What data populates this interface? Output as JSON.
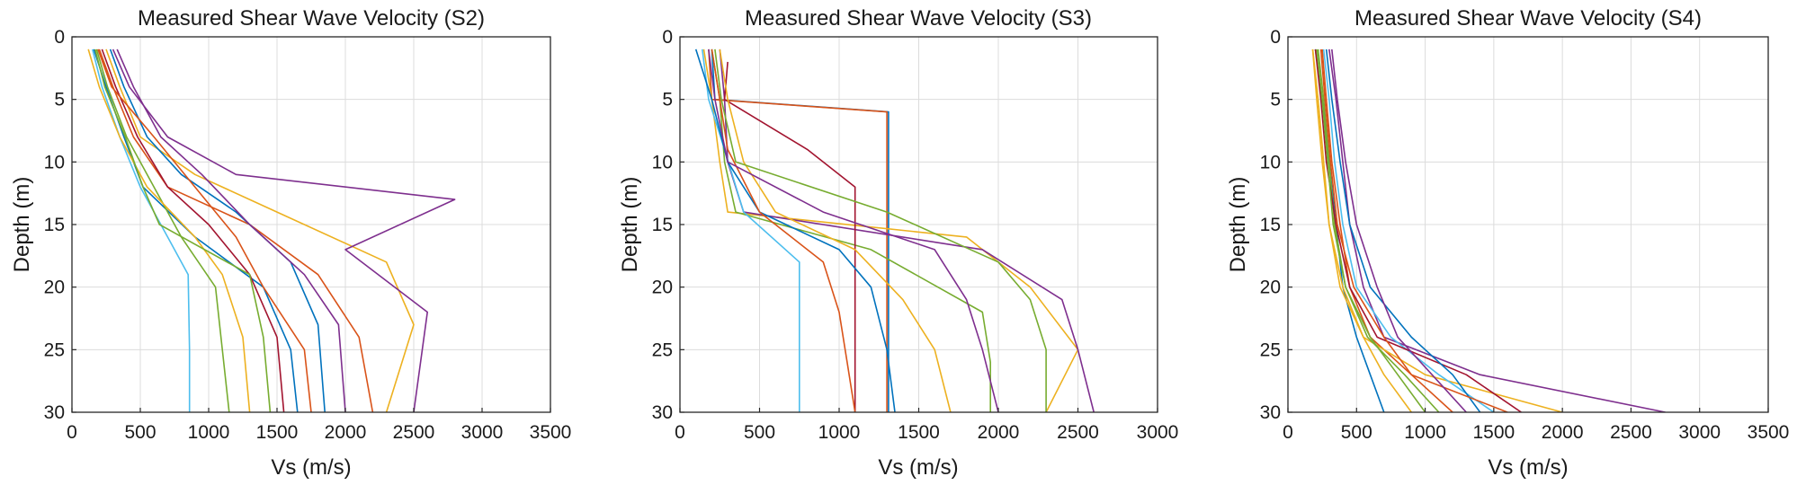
{
  "colors": [
    "#0072BD",
    "#D95319",
    "#EDB120",
    "#7E2F8E",
    "#77AC30",
    "#4DBEEE",
    "#A2142F"
  ],
  "chart_data": [
    {
      "type": "line",
      "title": "Measured Shear Wave Velocity (S2)",
      "xlabel": "Vs (m/s)",
      "ylabel": "Depth (m)",
      "xlim": [
        0,
        3500
      ],
      "ylim": [
        0,
        30
      ],
      "y_reversed": true,
      "grid": true,
      "xticks": [
        "0",
        "500",
        "1000",
        "1500",
        "2000",
        "2500",
        "3000",
        "3500"
      ],
      "yticks": [
        "0",
        "5",
        "10",
        "15",
        "20",
        "25",
        "30"
      ],
      "series": [
        {
          "x": [
            160,
            250,
            380,
            520,
            900,
            1400,
            1600,
            1650
          ],
          "y": [
            1,
            4,
            8,
            12,
            16,
            20,
            25,
            30
          ]
        },
        {
          "x": [
            200,
            300,
            450,
            700,
            1300,
            1800,
            2100,
            2200
          ],
          "y": [
            1,
            4,
            8,
            12,
            15,
            19,
            24,
            30
          ]
        },
        {
          "x": [
            250,
            350,
            500,
            900,
            1500,
            2300,
            2500,
            2300
          ],
          "y": [
            1,
            4,
            8,
            11,
            14,
            18,
            23,
            30
          ]
        },
        {
          "x": [
            300,
            420,
            700,
            1200,
            2800,
            2000,
            2600,
            2500
          ],
          "y": [
            1,
            4,
            8,
            11,
            13,
            17,
            22,
            30
          ]
        },
        {
          "x": [
            180,
            260,
            400,
            600,
            800,
            1050,
            1100,
            1150
          ],
          "y": [
            1,
            4,
            8,
            12,
            16,
            20,
            25,
            30
          ]
        },
        {
          "x": [
            150,
            220,
            350,
            500,
            700,
            850,
            860,
            860
          ],
          "y": [
            1,
            4,
            8,
            12,
            16,
            19,
            25,
            30
          ]
        },
        {
          "x": [
            220,
            320,
            480,
            700,
            1000,
            1300,
            1500,
            1550
          ],
          "y": [
            1,
            4,
            8,
            12,
            15,
            19,
            24,
            30
          ]
        },
        {
          "x": [
            280,
            380,
            550,
            800,
            1200,
            1600,
            1800,
            1850
          ],
          "y": [
            1,
            4,
            8,
            11,
            14,
            18,
            23,
            30
          ]
        },
        {
          "x": [
            190,
            290,
            600,
            900,
            1200,
            1400,
            1700,
            1750
          ],
          "y": [
            1,
            4,
            8,
            12,
            16,
            20,
            25,
            30
          ]
        },
        {
          "x": [
            120,
            200,
            350,
            550,
            900,
            1100,
            1250,
            1300
          ],
          "y": [
            1,
            4,
            8,
            12,
            16,
            19,
            24,
            30
          ]
        },
        {
          "x": [
            330,
            450,
            650,
            950,
            1300,
            1700,
            1950,
            2000
          ],
          "y": [
            1,
            4,
            8,
            11,
            15,
            19,
            23,
            30
          ]
        },
        {
          "x": [
            170,
            240,
            390,
            520,
            640,
            1300,
            1400,
            1450
          ],
          "y": [
            1,
            4,
            8,
            12,
            15,
            19,
            24,
            30
          ]
        }
      ]
    },
    {
      "type": "line",
      "title": "Measured Shear Wave Velocity (S3)",
      "xlabel": "Vs (m/s)",
      "ylabel": "Depth (m)",
      "xlim": [
        0,
        3000
      ],
      "ylim": [
        0,
        30
      ],
      "y_reversed": true,
      "grid": true,
      "xticks": [
        "0",
        "500",
        "1000",
        "1500",
        "2000",
        "2500",
        "3000"
      ],
      "yticks": [
        "0",
        "5",
        "10",
        "15",
        "20",
        "25",
        "30"
      ],
      "series": [
        {
          "x": [
            200,
            220,
            1310,
            1310,
            1310,
            1310
          ],
          "y": [
            1,
            5,
            6,
            15,
            25,
            30
          ]
        },
        {
          "x": [
            180,
            200,
            1300,
            1300,
            1300,
            1300
          ],
          "y": [
            1,
            5,
            6,
            15,
            25,
            30
          ]
        },
        {
          "x": [
            150,
            200,
            250,
            300,
            1800,
            2200,
            2500,
            2300
          ],
          "y": [
            1,
            5,
            10,
            14,
            16,
            20,
            25,
            30
          ]
        },
        {
          "x": [
            250,
            280,
            300,
            400,
            1900,
            2400,
            2500,
            2600
          ],
          "y": [
            1,
            5,
            10,
            14,
            17,
            21,
            25,
            30
          ]
        },
        {
          "x": [
            200,
            250,
            280,
            350,
            1200,
            1900,
            1950,
            1950
          ],
          "y": [
            1,
            5,
            10,
            14,
            17,
            22,
            26,
            30
          ]
        },
        {
          "x": [
            140,
            180,
            280,
            400,
            750,
            750,
            750,
            750
          ],
          "y": [
            1,
            5,
            9,
            14,
            18,
            22,
            26,
            30
          ]
        },
        {
          "x": [
            300,
            280,
            800,
            1100,
            1100,
            1100
          ],
          "y": [
            2,
            5,
            9,
            12,
            20,
            30
          ]
        },
        {
          "x": [
            100,
            200,
            300,
            500,
            1000,
            1200,
            1300,
            1350
          ],
          "y": [
            1,
            5,
            10,
            14,
            17,
            20,
            25,
            30
          ]
        },
        {
          "x": [
            200,
            250,
            300,
            500,
            900,
            1000,
            1050,
            1100
          ],
          "y": [
            1,
            5,
            9,
            14,
            18,
            22,
            26,
            30
          ]
        },
        {
          "x": [
            250,
            300,
            400,
            600,
            1100,
            1400,
            1600,
            1700
          ],
          "y": [
            1,
            5,
            10,
            14,
            17,
            21,
            25,
            30
          ]
        },
        {
          "x": [
            180,
            220,
            300,
            900,
            1600,
            1800,
            1900,
            2000
          ],
          "y": [
            1,
            5,
            10,
            14,
            17,
            21,
            25,
            30
          ]
        },
        {
          "x": [
            220,
            260,
            350,
            1300,
            2000,
            2200,
            2300,
            2300
          ],
          "y": [
            1,
            5,
            10,
            14,
            18,
            21,
            25,
            30
          ]
        }
      ]
    },
    {
      "type": "line",
      "title": "Measured Shear Wave Velocity (S4)",
      "xlabel": "Vs (m/s)",
      "ylabel": "Depth (m)",
      "xlim": [
        0,
        3500
      ],
      "ylim": [
        0,
        30
      ],
      "y_reversed": true,
      "grid": true,
      "xticks": [
        "0",
        "500",
        "1000",
        "1500",
        "2000",
        "2500",
        "3000",
        "3500"
      ],
      "yticks": [
        "0",
        "5",
        "10",
        "15",
        "20",
        "25",
        "30"
      ],
      "series": [
        {
          "x": [
            200,
            250,
            300,
            350,
            400,
            500,
            600,
            700
          ],
          "y": [
            1,
            5,
            10,
            15,
            20,
            24,
            27,
            30
          ]
        },
        {
          "x": [
            250,
            280,
            320,
            380,
            450,
            600,
            900,
            1200
          ],
          "y": [
            1,
            5,
            10,
            15,
            20,
            24,
            27,
            30
          ]
        },
        {
          "x": [
            180,
            220,
            260,
            300,
            380,
            550,
            1000,
            2000
          ],
          "y": [
            1,
            5,
            10,
            15,
            20,
            24,
            27,
            30
          ]
        },
        {
          "x": [
            300,
            350,
            400,
            450,
            550,
            700,
            1400,
            2750
          ],
          "y": [
            1,
            5,
            10,
            15,
            20,
            24,
            27,
            30
          ]
        },
        {
          "x": [
            220,
            260,
            300,
            340,
            420,
            600,
            800,
            1000
          ],
          "y": [
            1,
            5,
            10,
            15,
            20,
            24,
            27,
            30
          ]
        },
        {
          "x": [
            260,
            300,
            340,
            400,
            500,
            750,
            1100,
            1500
          ],
          "y": [
            1,
            5,
            10,
            15,
            20,
            24,
            27,
            30
          ]
        },
        {
          "x": [
            200,
            240,
            280,
            350,
            450,
            650,
            1300,
            1700
          ],
          "y": [
            1,
            5,
            10,
            15,
            20,
            24,
            27,
            30
          ]
        },
        {
          "x": [
            280,
            320,
            380,
            450,
            600,
            900,
            1200,
            1400
          ],
          "y": [
            1,
            5,
            10,
            15,
            20,
            24,
            27,
            30
          ]
        },
        {
          "x": [
            240,
            270,
            310,
            360,
            480,
            700,
            900,
            1600
          ],
          "y": [
            1,
            5,
            10,
            15,
            20,
            24,
            27,
            30
          ]
        },
        {
          "x": [
            180,
            210,
            250,
            300,
            400,
            550,
            700,
            900
          ],
          "y": [
            1,
            5,
            10,
            15,
            20,
            24,
            27,
            30
          ]
        },
        {
          "x": [
            320,
            360,
            420,
            500,
            650,
            800,
            1050,
            1300
          ],
          "y": [
            1,
            5,
            10,
            15,
            20,
            24,
            27,
            30
          ]
        },
        {
          "x": [
            210,
            250,
            290,
            330,
            420,
            580,
            850,
            1100
          ],
          "y": [
            1,
            5,
            10,
            15,
            20,
            24,
            27,
            30
          ]
        }
      ]
    }
  ]
}
